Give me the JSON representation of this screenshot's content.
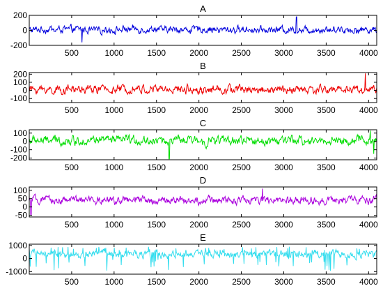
{
  "chart_data": [
    {
      "type": "line",
      "title": "A",
      "color": "#0000dd",
      "xlim": [
        0,
        4096
      ],
      "ylim": [
        -200,
        200
      ],
      "xticks": [
        500,
        1000,
        1500,
        2000,
        2500,
        3000,
        3500,
        4000
      ],
      "xtick_labels": [
        "500",
        "1000",
        "1500",
        "2000",
        "2500",
        "3000",
        "3500",
        "4000"
      ],
      "yticks": [
        200,
        0,
        -200
      ],
      "ytick_labels": [
        "200",
        "0",
        "-200"
      ],
      "signal": {
        "samples": 4096,
        "amplitude": 40,
        "offset": 10,
        "features": [
          {
            "x": 3150,
            "value": 180
          },
          {
            "x": 620,
            "value": -160
          }
        ]
      }
    },
    {
      "type": "line",
      "title": "B",
      "color": "#ee0000",
      "xlim": [
        0,
        4096
      ],
      "ylim": [
        -150,
        220
      ],
      "xticks": [
        500,
        1000,
        1500,
        2000,
        2500,
        3000,
        3500,
        4000
      ],
      "xtick_labels": [
        "500",
        "1000",
        "1500",
        "2000",
        "2500",
        "3000",
        "3500",
        "4000"
      ],
      "yticks": [
        200,
        100,
        0,
        -100
      ],
      "ytick_labels": [
        "200",
        "100",
        "0",
        "-100"
      ],
      "signal": {
        "samples": 4096,
        "amplitude": 45,
        "offset": 10,
        "features": [
          {
            "x": 3960,
            "value": 210
          }
        ]
      }
    },
    {
      "type": "line",
      "title": "C",
      "color": "#00dd00",
      "xlim": [
        0,
        4096
      ],
      "ylim": [
        -220,
        140
      ],
      "xticks": [
        500,
        1000,
        1500,
        2000,
        2500,
        3000,
        3500,
        4000
      ],
      "xtick_labels": [
        "500",
        "1000",
        "1500",
        "2000",
        "2500",
        "3000",
        "3500",
        "4000"
      ],
      "yticks": [
        100,
        0,
        -100,
        -200
      ],
      "ytick_labels": [
        "100",
        "0",
        "-100",
        "-200"
      ],
      "signal": {
        "samples": 4096,
        "amplitude": 45,
        "offset": 10,
        "features": [
          {
            "x": 1650,
            "value": -210
          },
          {
            "x": 4020,
            "value": 130
          },
          {
            "x": 4060,
            "value": -150
          }
        ]
      }
    },
    {
      "type": "line",
      "title": "D",
      "color": "#aa00dd",
      "xlim": [
        0,
        4096
      ],
      "ylim": [
        -60,
        120
      ],
      "xticks": [
        500,
        1000,
        1500,
        2000,
        2500,
        3000,
        3500,
        4000
      ],
      "xtick_labels": [
        "500",
        "1000",
        "1500",
        "2000",
        "2500",
        "3000",
        "3500",
        "4000"
      ],
      "yticks": [
        100,
        50,
        0,
        -50
      ],
      "ytick_labels": [
        "100",
        "50",
        "0",
        "-50"
      ],
      "signal": {
        "samples": 4096,
        "amplitude": 20,
        "offset": 40,
        "features": [
          {
            "x": 2750,
            "value": 110
          },
          {
            "x": 20,
            "value": -50
          }
        ]
      }
    },
    {
      "type": "line",
      "title": "E",
      "color": "#33ddee",
      "xlim": [
        0,
        4096
      ],
      "ylim": [
        -1200,
        1100
      ],
      "xticks": [
        500,
        1000,
        1500,
        2000,
        2500,
        3000,
        3500,
        4000
      ],
      "xtick_labels": [
        "500",
        "1000",
        "1500",
        "2000",
        "2500",
        "3000",
        "3500",
        "4000"
      ],
      "yticks": [
        1000,
        0,
        -1000
      ],
      "ytick_labels": [
        "1000",
        "0",
        "-1000"
      ],
      "signal": {
        "samples": 4096,
        "amplitude": 250,
        "offset": 350,
        "features": []
      }
    }
  ]
}
